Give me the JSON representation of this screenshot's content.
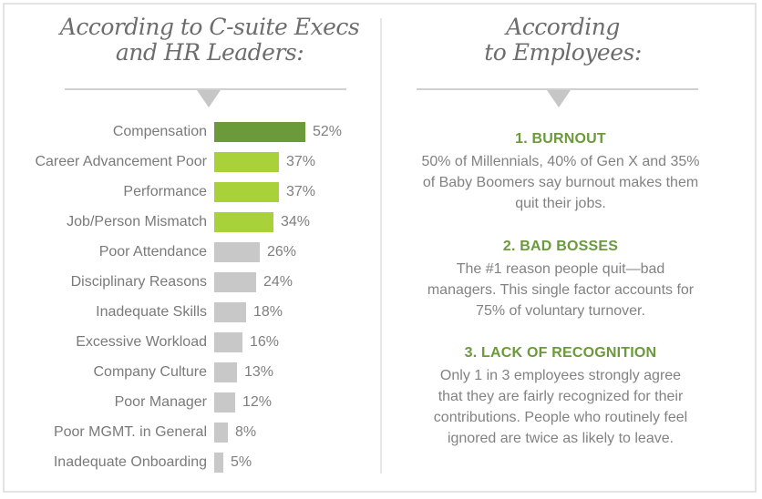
{
  "left_panel": {
    "title_lines": [
      "According to C-suite Execs",
      "and HR Leaders:"
    ]
  },
  "right_panel": {
    "title_lines": [
      "According",
      "to Employees:"
    ],
    "items": [
      {
        "heading": "1. BURNOUT",
        "body": "50% of Millennials, 40% of Gen X and 35% of Baby Boomers say burnout makes them quit their jobs."
      },
      {
        "heading": "2. BAD BOSSES",
        "body": "The #1 reason people quit—bad managers. This single factor accounts for 75% of voluntary turnover."
      },
      {
        "heading": "3. LACK OF RECOGNITION",
        "body": "Only 1 in 3 employees strongly agree that they are fairly recognized for their contributions. People who routinely feel ignored are twice as likely to leave."
      }
    ]
  },
  "colors": {
    "top_bar": "#6b9a3a",
    "highlight_bar": "#a8d13a",
    "other_bar": "#c8c8c8",
    "heading_green": "#6a9a3a",
    "text_gray": "#7a7a7a"
  },
  "chart_data": {
    "type": "bar",
    "orientation": "horizontal",
    "title": "According to C-suite Execs and HR Leaders:",
    "xlabel": "",
    "ylabel": "",
    "grid": false,
    "legend": false,
    "categories": [
      "Compensation",
      "Career Advancement Poor",
      "Performance",
      "Job/Person Mismatch",
      "Poor Attendance",
      "Disciplinary Reasons",
      "Inadequate Skills",
      "Excessive Workload",
      "Company Culture",
      "Poor Manager",
      "Poor MGMT. in General",
      "Inadequate Onboarding"
    ],
    "values": [
      52,
      37,
      37,
      34,
      26,
      24,
      18,
      16,
      13,
      12,
      8,
      5
    ],
    "value_labels": [
      "52%",
      "37%",
      "37%",
      "34%",
      "26%",
      "24%",
      "18%",
      "16%",
      "13%",
      "12%",
      "8%",
      "5%"
    ],
    "bar_colors": [
      "#6b9a3a",
      "#a8d13a",
      "#a8d13a",
      "#a8d13a",
      "#c8c8c8",
      "#c8c8c8",
      "#c8c8c8",
      "#c8c8c8",
      "#c8c8c8",
      "#c8c8c8",
      "#c8c8c8",
      "#c8c8c8"
    ],
    "unit": "%",
    "xlim": [
      0,
      52
    ]
  }
}
